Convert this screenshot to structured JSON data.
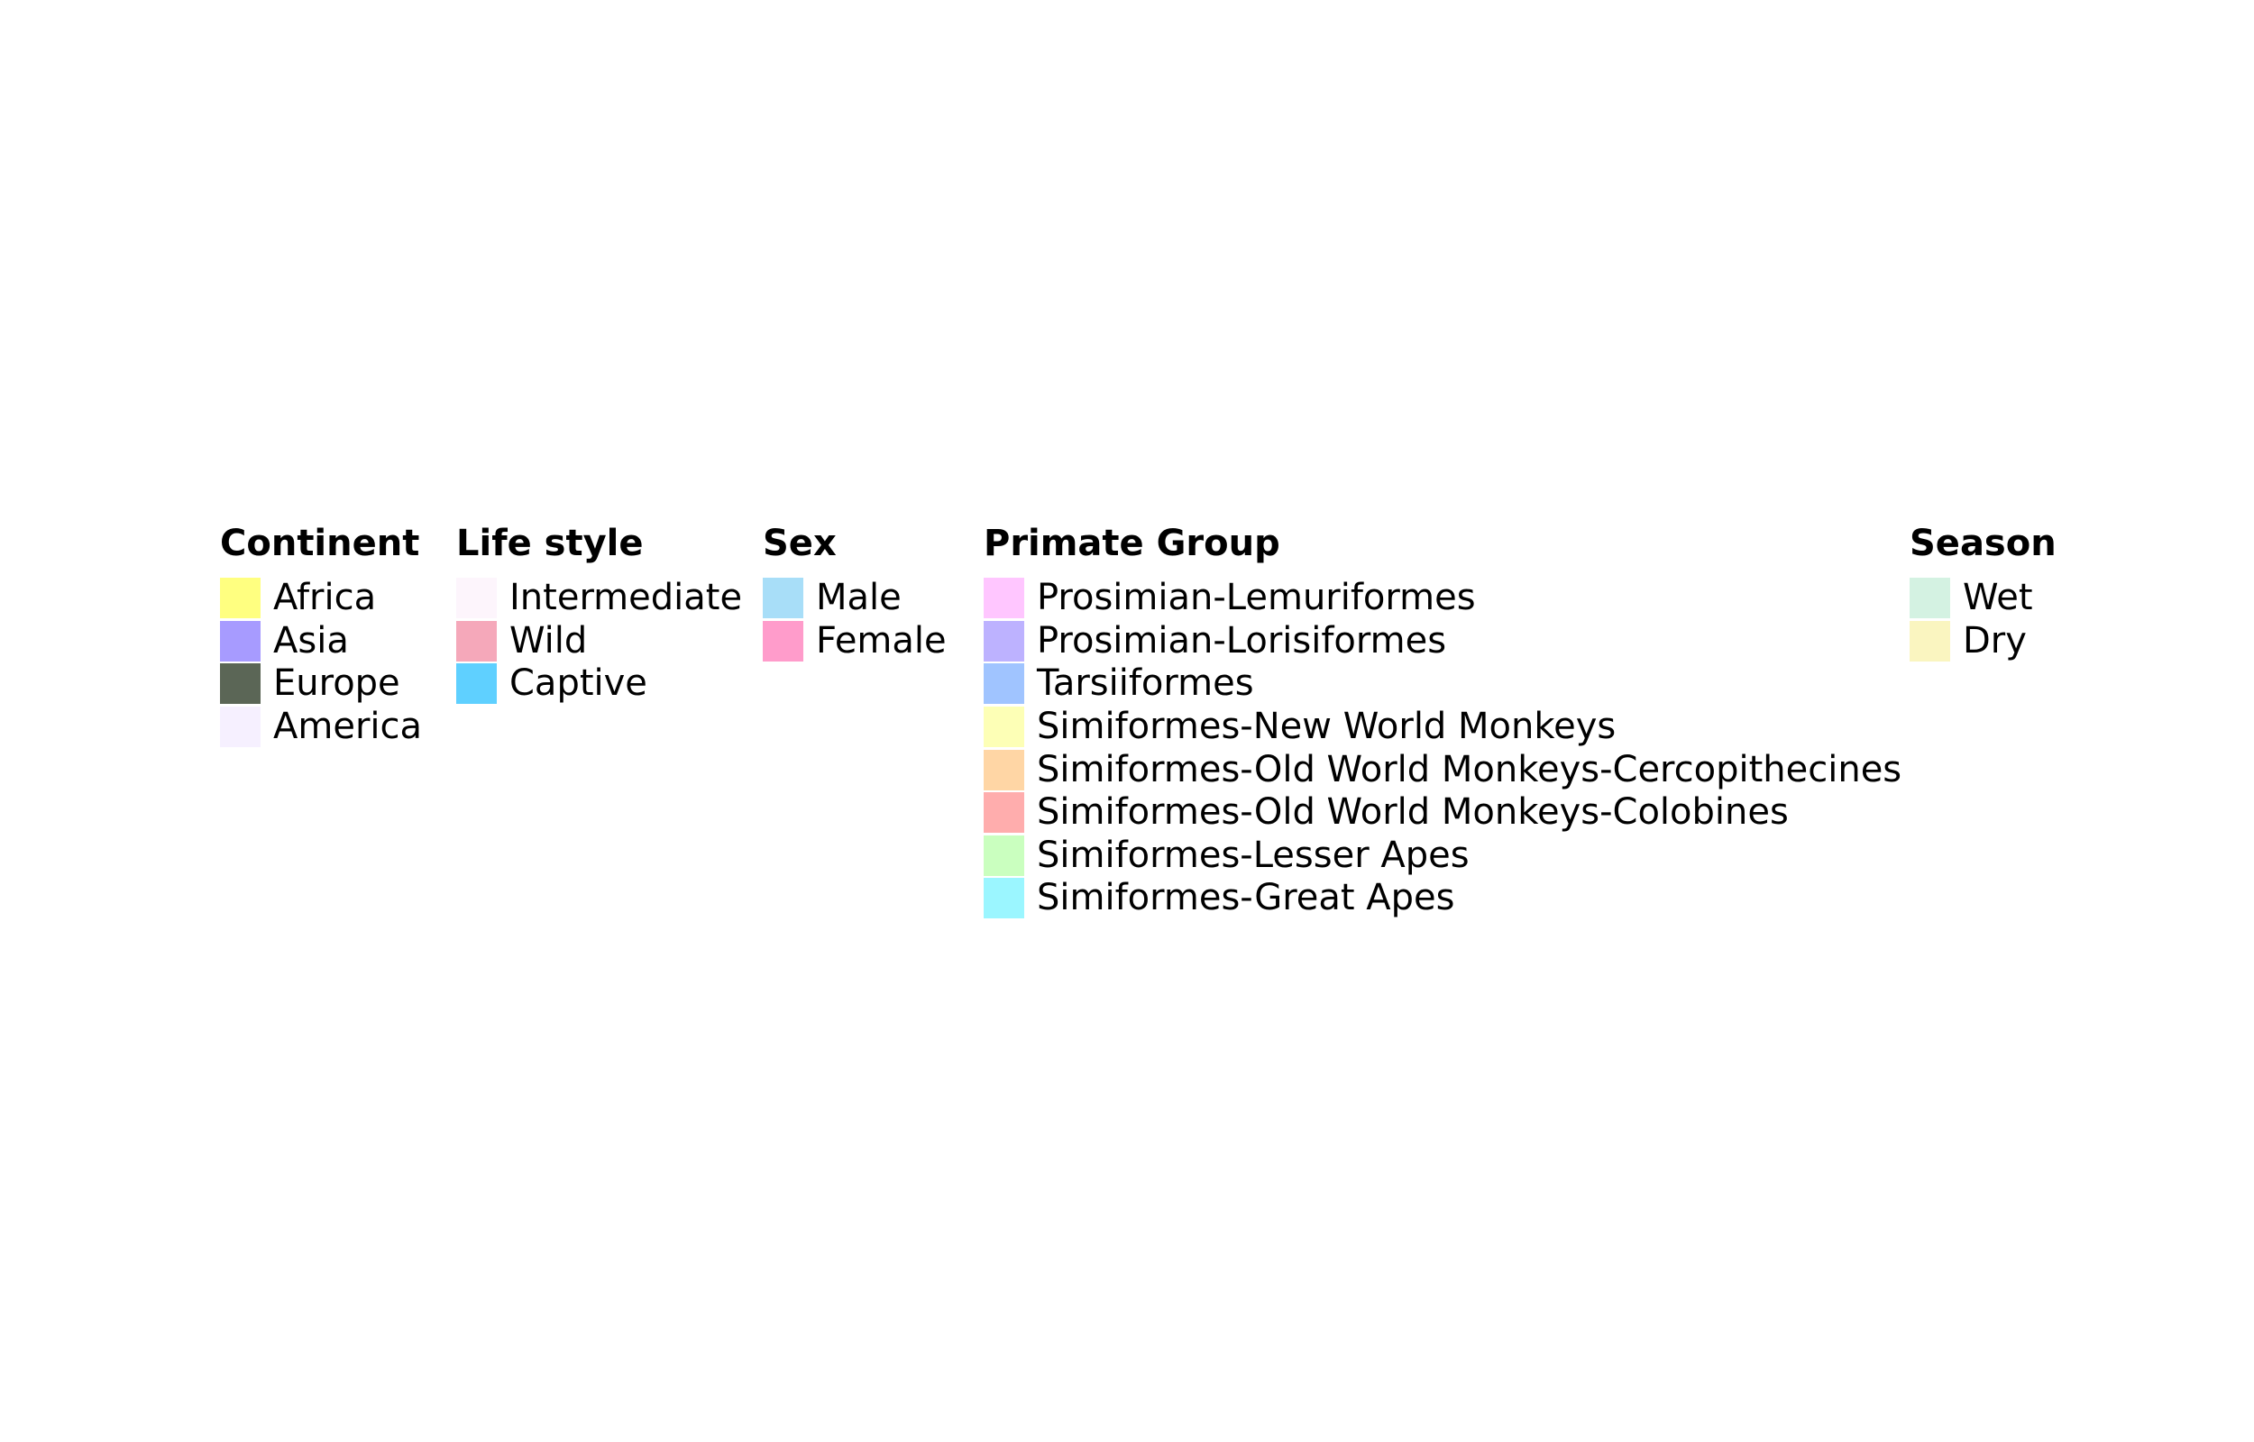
{
  "chart_data": {
    "type": "legend",
    "legends": [
      {
        "id": "continent",
        "title": "Continent",
        "entries": [
          {
            "label": "Africa",
            "color": "#FFFF80"
          },
          {
            "label": "Asia",
            "color": "#A79BFF"
          },
          {
            "label": "Europe",
            "color": "#5B6656"
          },
          {
            "label": "America",
            "color": "#F6F0FF"
          }
        ]
      },
      {
        "id": "lifestyle",
        "title": "Life style",
        "entries": [
          {
            "label": "Intermediate",
            "color": "#FDF5FC"
          },
          {
            "label": "Wild",
            "color": "#F5A8BA"
          },
          {
            "label": "Captive",
            "color": "#5FD0FF"
          }
        ]
      },
      {
        "id": "sex",
        "title": "Sex",
        "entries": [
          {
            "label": "Male",
            "color": "#A8DEF8"
          },
          {
            "label": "Female",
            "color": "#FF9CCB"
          }
        ]
      },
      {
        "id": "primate",
        "title": "Primate Group",
        "entries": [
          {
            "label": "Prosimian-Lemuriformes",
            "color": "#FFC6FF"
          },
          {
            "label": "Prosimian-Lorisiformes",
            "color": "#BDB2FF"
          },
          {
            "label": "Tarsiiformes",
            "color": "#A0C4FF"
          },
          {
            "label": "Simiformes-New World Monkeys",
            "color": "#FDFFB6"
          },
          {
            "label": "Simiformes-Old World Monkeys-Cercopithecines",
            "color": "#FFD6A5"
          },
          {
            "label": "Simiformes-Old World Monkeys-Colobines",
            "color": "#FFADAD"
          },
          {
            "label": "Simiformes-Lesser Apes",
            "color": "#CAFFBF"
          },
          {
            "label": "Simiformes-Great Apes",
            "color": "#9BF6FF"
          }
        ]
      },
      {
        "id": "season",
        "title": "Season",
        "entries": [
          {
            "label": "Wet",
            "color": "#D4F2E2"
          },
          {
            "label": "Dry",
            "color": "#FAF5C0"
          }
        ]
      }
    ]
  }
}
